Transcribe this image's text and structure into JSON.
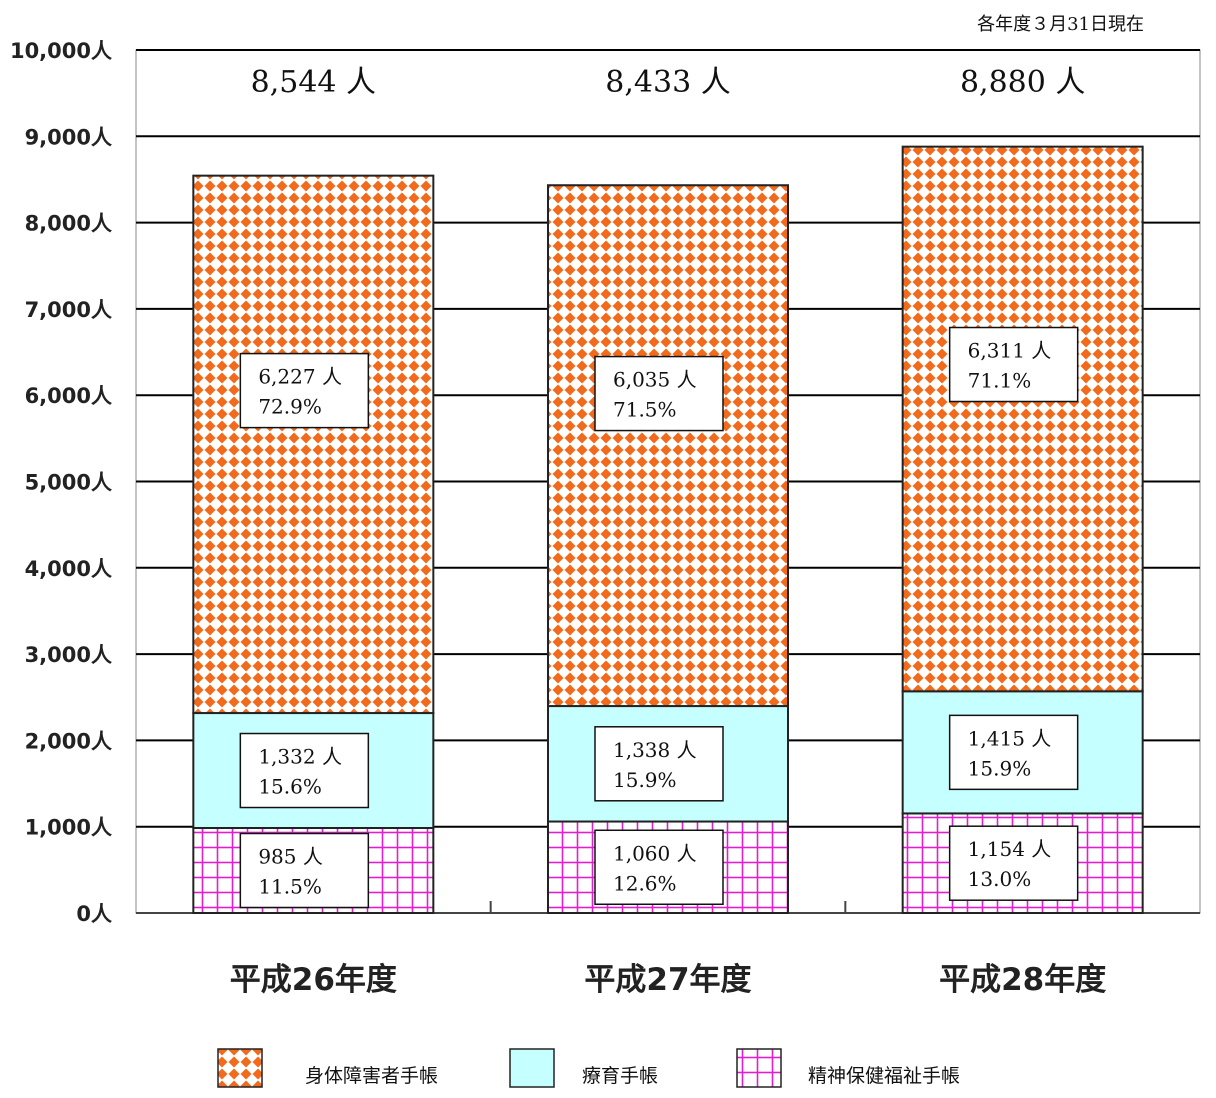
{
  "note": "各年度３月31日現在",
  "chart_data": {
    "type": "bar",
    "stacked": true,
    "categories": [
      "平成26年度",
      "平成27年度",
      "平成28年度"
    ],
    "ylim": [
      0,
      10000
    ],
    "yticks": [
      0,
      1000,
      2000,
      3000,
      4000,
      5000,
      6000,
      7000,
      8000,
      9000,
      10000
    ],
    "ytick_labels": [
      "0人",
      "1,000人",
      "2,000人",
      "3,000人",
      "4,000人",
      "5,000人",
      "6,000人",
      "7,000人",
      "8,000人",
      "9,000人",
      "10,000人"
    ],
    "totals": [
      8544,
      8433,
      8880
    ],
    "total_labels": [
      "8,544 人",
      "8,433 人",
      "8,880 人"
    ],
    "series": [
      {
        "name": "精神保健福祉手帳",
        "values": [
          985,
          1060,
          1154
        ],
        "count_labels": [
          "985 人",
          "1,060 人",
          "1,154 人"
        ],
        "pct_labels": [
          "11.5%",
          "12.6%",
          "13.0%"
        ],
        "color": "#e020d0",
        "pattern": "grid"
      },
      {
        "name": "療育手帳",
        "values": [
          1332,
          1338,
          1415
        ],
        "count_labels": [
          "1,332 人",
          "1,338 人",
          "1,415 人"
        ],
        "pct_labels": [
          "15.6%",
          "15.9%",
          "15.9%"
        ],
        "color": "#c6ffff",
        "pattern": "solid"
      },
      {
        "name": "身体障害者手帳",
        "values": [
          6227,
          6035,
          6311
        ],
        "count_labels": [
          "6,227 人",
          "6,035 人",
          "6,311 人"
        ],
        "pct_labels": [
          "72.9%",
          "71.5%",
          "71.1%"
        ],
        "color": "#f26a1b",
        "pattern": "diamond"
      }
    ],
    "legend": {
      "position": "bottom",
      "items": [
        "身体障害者手帳",
        "療育手帳",
        "精神保健福祉手帳"
      ]
    },
    "grid": true
  }
}
